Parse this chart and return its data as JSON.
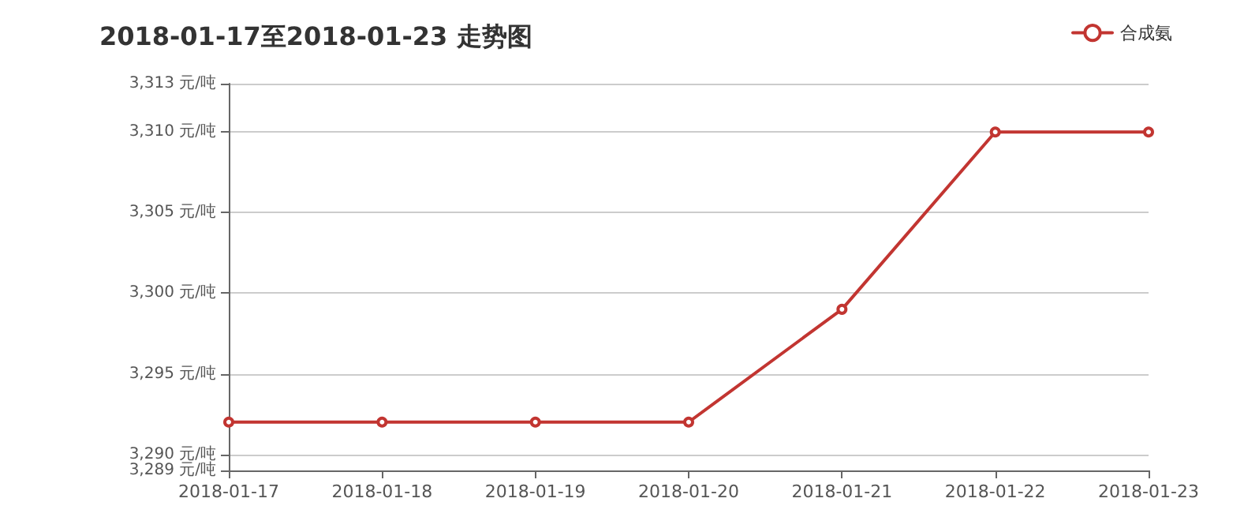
{
  "chart_data": {
    "type": "line",
    "title": "2018-01-17至2018-01-23 走势图",
    "categories": [
      "2018-01-17",
      "2018-01-18",
      "2018-01-19",
      "2018-01-20",
      "2018-01-21",
      "2018-01-22",
      "2018-01-23"
    ],
    "series": [
      {
        "name": "合成氨",
        "color": "#c23531",
        "values": [
          3292,
          3292,
          3292,
          3292,
          3299,
          3310,
          3310
        ]
      }
    ],
    "ylim": [
      3289,
      3313
    ],
    "yticks": [
      {
        "value": 3289,
        "label": "3,289 元/吨"
      },
      {
        "value": 3290,
        "label": "3,290 元/吨"
      },
      {
        "value": 3295,
        "label": "3,295 元/吨"
      },
      {
        "value": 3300,
        "label": "3,300 元/吨"
      },
      {
        "value": 3305,
        "label": "3,305 元/吨"
      },
      {
        "value": 3310,
        "label": "3,310 元/吨"
      },
      {
        "value": 3313,
        "label": "3,313 元/吨"
      }
    ],
    "grid": "y",
    "legend": "top right",
    "marker": "circle",
    "line_style": "solid"
  }
}
